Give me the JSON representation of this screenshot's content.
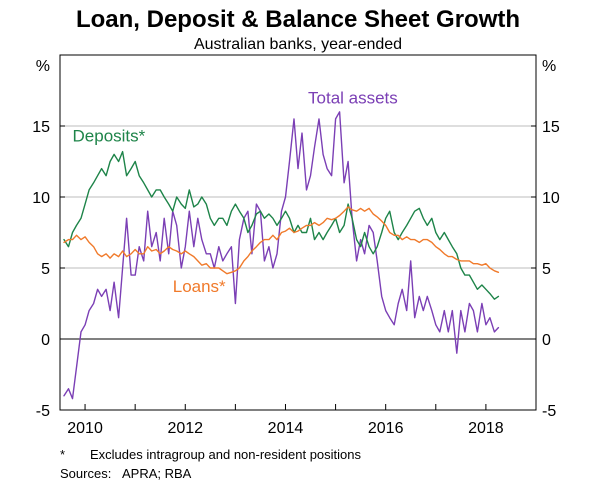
{
  "chart_data": {
    "type": "line",
    "title": "Loan, Deposit & Balance Sheet Growth",
    "subtitle": "Australian banks, year-ended",
    "ylabel_left": "%",
    "ylabel_right": "%",
    "ylim": [
      -5,
      20
    ],
    "xlim": [
      2009.5,
      2019.0
    ],
    "yticks": [
      -5,
      0,
      5,
      10,
      15
    ],
    "ytick_labels": [
      "-5",
      "0",
      "5",
      "10",
      "15"
    ],
    "xticks": [
      2010,
      2012,
      2014,
      2016,
      2018
    ],
    "xtick_labels": [
      "2010",
      "2012",
      "2014",
      "2016",
      "2018"
    ],
    "gridlines": true,
    "colors": {
      "total_assets": "#7B3FB5",
      "deposits": "#1E8449",
      "loans": "#F07A2B",
      "grid": "#BDBDBD",
      "axis": "#000000"
    },
    "series": [
      {
        "key": "total_assets",
        "name": "Total assets",
        "x": [
          2009.58,
          2009.67,
          2009.75,
          2009.83,
          2009.92,
          2010.0,
          2010.08,
          2010.17,
          2010.25,
          2010.33,
          2010.42,
          2010.5,
          2010.58,
          2010.67,
          2010.75,
          2010.83,
          2010.92,
          2011.0,
          2011.08,
          2011.17,
          2011.25,
          2011.33,
          2011.42,
          2011.5,
          2011.58,
          2011.67,
          2011.75,
          2011.83,
          2011.92,
          2012.0,
          2012.08,
          2012.17,
          2012.25,
          2012.33,
          2012.42,
          2012.5,
          2012.58,
          2012.67,
          2012.75,
          2012.83,
          2012.92,
          2013.0,
          2013.08,
          2013.17,
          2013.25,
          2013.33,
          2013.42,
          2013.5,
          2013.58,
          2013.67,
          2013.75,
          2013.83,
          2013.92,
          2014.0,
          2014.08,
          2014.17,
          2014.25,
          2014.33,
          2014.42,
          2014.5,
          2014.58,
          2014.67,
          2014.75,
          2014.83,
          2014.92,
          2015.0,
          2015.08,
          2015.17,
          2015.25,
          2015.33,
          2015.42,
          2015.5,
          2015.58,
          2015.67,
          2015.75,
          2015.83,
          2015.92,
          2016.0,
          2016.08,
          2016.17,
          2016.25,
          2016.33,
          2016.42,
          2016.5,
          2016.58,
          2016.67,
          2016.75,
          2016.83,
          2016.92,
          2017.0,
          2017.08,
          2017.17,
          2017.25,
          2017.33,
          2017.42,
          2017.5,
          2017.58,
          2017.67,
          2017.75,
          2017.83,
          2017.92,
          2018.0,
          2018.08,
          2018.17,
          2018.25
        ],
        "values": [
          -4.0,
          -3.5,
          -4.2,
          -2.0,
          0.5,
          1.0,
          2.0,
          2.5,
          3.5,
          3.0,
          3.5,
          2.0,
          4.0,
          1.5,
          5.0,
          8.5,
          4.5,
          4.5,
          6.5,
          5.5,
          9.0,
          6.5,
          7.5,
          5.5,
          8.5,
          6.0,
          9.0,
          8.0,
          5.0,
          6.5,
          9.0,
          6.5,
          8.5,
          7.0,
          6.0,
          6.0,
          5.0,
          6.5,
          5.5,
          6.0,
          6.5,
          2.5,
          7.0,
          8.5,
          9.0,
          6.0,
          9.5,
          9.0,
          5.5,
          6.5,
          5.0,
          6.0,
          9.0,
          10.0,
          12.5,
          15.5,
          12.0,
          14.5,
          10.5,
          11.5,
          13.5,
          15.5,
          13.0,
          12.0,
          11.5,
          15.5,
          16.0,
          11.0,
          12.5,
          8.5,
          5.5,
          7.0,
          6.0,
          8.0,
          7.5,
          5.5,
          3.0,
          2.0,
          1.5,
          1.0,
          2.5,
          3.5,
          2.0,
          5.5,
          1.5,
          3.0,
          2.0,
          3.0,
          2.0,
          1.0,
          0.5,
          2.0,
          0.5,
          2.0,
          -1.0,
          2.0,
          0.5,
          2.5,
          2.0,
          0.5,
          2.5,
          1.0,
          1.5,
          0.5,
          0.8
        ]
      },
      {
        "key": "deposits",
        "name": "Deposits*",
        "x": [
          2009.58,
          2009.67,
          2009.75,
          2009.83,
          2009.92,
          2010.0,
          2010.08,
          2010.17,
          2010.25,
          2010.33,
          2010.42,
          2010.5,
          2010.58,
          2010.67,
          2010.75,
          2010.83,
          2010.92,
          2011.0,
          2011.08,
          2011.17,
          2011.25,
          2011.33,
          2011.42,
          2011.5,
          2011.58,
          2011.67,
          2011.75,
          2011.83,
          2011.92,
          2012.0,
          2012.08,
          2012.17,
          2012.25,
          2012.33,
          2012.42,
          2012.5,
          2012.58,
          2012.67,
          2012.75,
          2012.83,
          2012.92,
          2013.0,
          2013.08,
          2013.17,
          2013.25,
          2013.33,
          2013.42,
          2013.5,
          2013.58,
          2013.67,
          2013.75,
          2013.83,
          2013.92,
          2014.0,
          2014.08,
          2014.17,
          2014.25,
          2014.33,
          2014.42,
          2014.5,
          2014.58,
          2014.67,
          2014.75,
          2014.83,
          2014.92,
          2015.0,
          2015.08,
          2015.17,
          2015.25,
          2015.33,
          2015.42,
          2015.5,
          2015.58,
          2015.67,
          2015.75,
          2015.83,
          2015.92,
          2016.0,
          2016.08,
          2016.17,
          2016.25,
          2016.33,
          2016.42,
          2016.5,
          2016.58,
          2016.67,
          2016.75,
          2016.83,
          2016.92,
          2017.0,
          2017.08,
          2017.17,
          2017.25,
          2017.33,
          2017.42,
          2017.5,
          2017.58,
          2017.67,
          2017.75,
          2017.83,
          2017.92,
          2018.0,
          2018.08,
          2018.17,
          2018.25
        ],
        "values": [
          7.0,
          6.5,
          7.5,
          8.0,
          8.5,
          9.5,
          10.5,
          11.0,
          11.5,
          12.0,
          11.5,
          12.5,
          13.0,
          12.5,
          13.2,
          11.5,
          12.0,
          12.5,
          11.5,
          11.0,
          10.5,
          10.0,
          10.5,
          10.5,
          10.0,
          9.5,
          9.0,
          10.0,
          9.5,
          9.2,
          10.5,
          9.3,
          9.5,
          10.0,
          9.5,
          8.5,
          8.0,
          8.5,
          8.5,
          8.0,
          9.0,
          9.5,
          9.0,
          8.5,
          7.5,
          8.0,
          8.8,
          9.0,
          8.5,
          8.8,
          8.5,
          8.0,
          8.5,
          9.0,
          8.5,
          7.5,
          8.0,
          7.5,
          7.5,
          8.5,
          7.0,
          7.5,
          7.0,
          7.5,
          8.0,
          8.5,
          7.5,
          8.0,
          9.5,
          8.5,
          7.0,
          6.5,
          7.5,
          6.5,
          6.0,
          6.5,
          7.5,
          8.5,
          9.0,
          7.5,
          7.0,
          7.5,
          8.0,
          8.5,
          9.0,
          9.2,
          8.5,
          8.0,
          8.5,
          7.5,
          7.0,
          7.5,
          7.0,
          6.5,
          6.0,
          5.0,
          4.5,
          4.5,
          4.0,
          3.5,
          3.8,
          3.5,
          3.2,
          2.8,
          3.0
        ]
      },
      {
        "key": "loans",
        "name": "Loans*",
        "x": [
          2009.58,
          2009.67,
          2009.75,
          2009.83,
          2009.92,
          2010.0,
          2010.08,
          2010.17,
          2010.25,
          2010.33,
          2010.42,
          2010.5,
          2010.58,
          2010.67,
          2010.75,
          2010.83,
          2010.92,
          2011.0,
          2011.08,
          2011.17,
          2011.25,
          2011.33,
          2011.42,
          2011.5,
          2011.58,
          2011.67,
          2011.75,
          2011.83,
          2011.92,
          2012.0,
          2012.08,
          2012.17,
          2012.25,
          2012.33,
          2012.42,
          2012.5,
          2012.58,
          2012.67,
          2012.75,
          2012.83,
          2012.92,
          2013.0,
          2013.08,
          2013.17,
          2013.25,
          2013.33,
          2013.42,
          2013.5,
          2013.58,
          2013.67,
          2013.75,
          2013.83,
          2013.92,
          2014.0,
          2014.08,
          2014.17,
          2014.25,
          2014.33,
          2014.42,
          2014.5,
          2014.58,
          2014.67,
          2014.75,
          2014.83,
          2014.92,
          2015.0,
          2015.08,
          2015.17,
          2015.25,
          2015.33,
          2015.42,
          2015.5,
          2015.58,
          2015.67,
          2015.75,
          2015.83,
          2015.92,
          2016.0,
          2016.08,
          2016.17,
          2016.25,
          2016.33,
          2016.42,
          2016.5,
          2016.58,
          2016.67,
          2016.75,
          2016.83,
          2016.92,
          2017.0,
          2017.08,
          2017.17,
          2017.25,
          2017.33,
          2017.42,
          2017.5,
          2017.58,
          2017.67,
          2017.75,
          2017.83,
          2017.92,
          2018.0,
          2018.08,
          2018.17,
          2018.25
        ],
        "values": [
          6.8,
          7.0,
          7.0,
          7.3,
          7.0,
          7.2,
          6.8,
          6.5,
          6.0,
          5.8,
          6.0,
          5.7,
          6.0,
          5.8,
          6.2,
          5.8,
          6.0,
          6.3,
          6.0,
          6.0,
          6.5,
          6.2,
          6.3,
          6.0,
          6.2,
          6.5,
          6.3,
          6.2,
          6.0,
          6.2,
          6.0,
          5.8,
          5.5,
          5.2,
          5.3,
          5.0,
          5.0,
          5.0,
          4.8,
          4.6,
          4.7,
          4.8,
          5.0,
          5.5,
          5.8,
          6.2,
          6.5,
          6.8,
          7.0,
          7.0,
          7.3,
          7.0,
          7.5,
          7.6,
          7.8,
          7.5,
          7.6,
          7.8,
          8.0,
          8.0,
          8.2,
          8.0,
          8.2,
          8.5,
          8.4,
          8.5,
          8.7,
          9.0,
          9.3,
          9.1,
          9.0,
          9.2,
          9.0,
          9.2,
          8.8,
          8.6,
          8.3,
          8.0,
          7.5,
          7.3,
          7.3,
          7.0,
          7.2,
          7.0,
          7.0,
          6.8,
          7.0,
          7.0,
          6.8,
          6.5,
          6.3,
          6.0,
          5.8,
          5.8,
          5.6,
          5.5,
          5.5,
          5.5,
          5.3,
          5.3,
          5.2,
          5.3,
          5.0,
          4.8,
          4.7
        ]
      }
    ]
  },
  "footnotes": {
    "marker": "*",
    "note": "Excludes intragroup and non-resident positions",
    "sources_label": "Sources:",
    "sources_value": "APRA; RBA"
  }
}
